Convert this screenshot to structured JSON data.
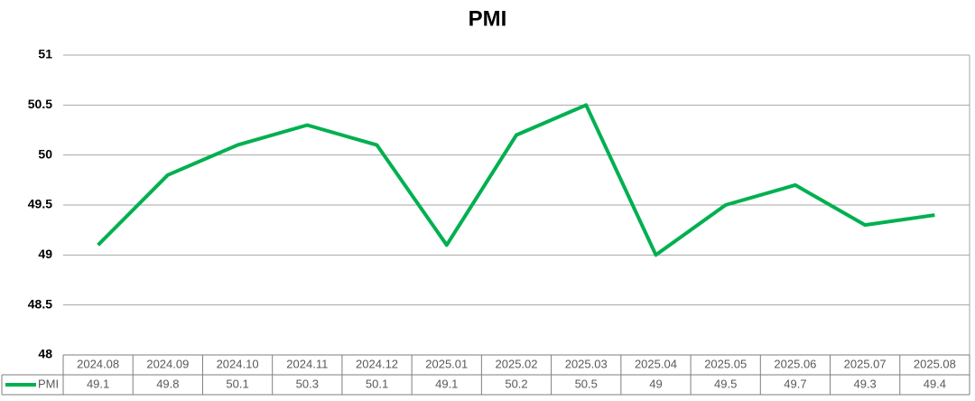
{
  "chart_data": {
    "type": "line",
    "title": "PMI",
    "categories": [
      "2024.08",
      "2024.09",
      "2024.10",
      "2024.11",
      "2024.12",
      "2025.01",
      "2025.02",
      "2025.03",
      "2025.04",
      "2025.05",
      "2025.06",
      "2025.07",
      "2025.08"
    ],
    "series": [
      {
        "name": "PMI",
        "color": "#00b050",
        "values": [
          49.1,
          49.8,
          50.1,
          50.3,
          50.1,
          49.1,
          50.2,
          50.5,
          49,
          49.5,
          49.7,
          49.3,
          49.4
        ]
      }
    ],
    "ylim": [
      48,
      51
    ],
    "yticks": [
      48,
      48.5,
      49,
      49.5,
      50,
      50.5,
      51
    ],
    "grid": true,
    "data_table": true
  }
}
